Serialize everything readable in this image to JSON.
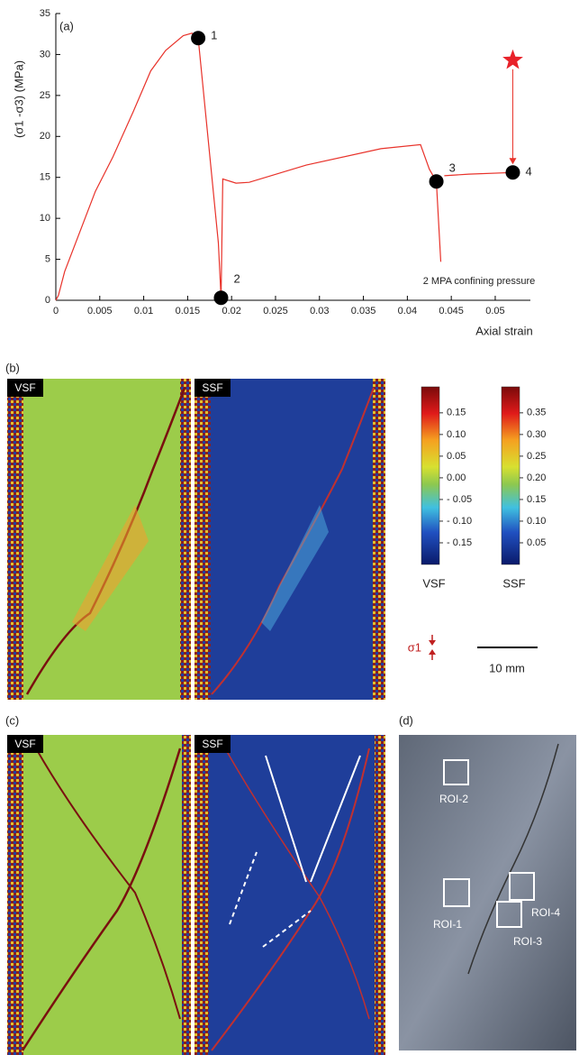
{
  "chart_data": {
    "type": "line",
    "panel_label": "(a)",
    "xlabel": "Axial strain",
    "ylabel": "(σ1 -σ3) (MPa)",
    "annotation": "2 MPA confining pressure",
    "xlim": [
      0,
      0.054
    ],
    "ylim": [
      0,
      35
    ],
    "xticks": [
      0,
      0.005,
      0.01,
      0.015,
      0.02,
      0.025,
      0.03,
      0.035,
      0.04,
      0.045,
      0.05
    ],
    "yticks": [
      0,
      5,
      10,
      15,
      20,
      25,
      30,
      35
    ],
    "series": [
      {
        "color": "#e8322a",
        "x": [
          0,
          0.0003,
          0.001,
          0.0045,
          0.0065,
          0.0088,
          0.0108,
          0.0125,
          0.0145,
          0.0155,
          0.0162,
          0.0185,
          0.0188,
          0.019,
          0.0205,
          0.022,
          0.0285,
          0.037,
          0.0415,
          0.0425,
          0.0433,
          0.0438,
          null,
          0.0442,
          0.047,
          0.052
        ],
        "values": [
          0,
          0.6,
          3.5,
          13.3,
          17.5,
          23,
          28,
          30.5,
          32.3,
          32.6,
          32,
          7,
          0.3,
          14.8,
          14.3,
          14.4,
          16.5,
          18.5,
          19,
          16,
          14.5,
          4.7,
          null,
          15.2,
          15.4,
          15.6
        ]
      }
    ],
    "markers": [
      {
        "label": "1",
        "x": 0.0162,
        "y": 32
      },
      {
        "label": "2",
        "x": 0.0188,
        "y": 0.3
      },
      {
        "label": "3",
        "x": 0.0433,
        "y": 14.5
      },
      {
        "label": "4",
        "x": 0.052,
        "y": 15.6
      }
    ],
    "star": {
      "x": 0.052,
      "y": 29.3
    }
  },
  "panel_b": {
    "label": "(b)",
    "images": [
      "VSF",
      "SSF"
    ],
    "colorbars": [
      {
        "name": "VSF",
        "clim": [
          -0.2,
          0.21
        ],
        "ticks": [
          0.15,
          {
            "value": 0.1,
            "label": "0.10"
          },
          0.05,
          {
            "value": 0,
            "label": "0.00"
          },
          {
            "value": -0.05,
            "label": "- 0.05"
          },
          {
            "value": -0.1,
            "label": "- 0.10"
          },
          {
            "value": -0.15,
            "label": "- 0.15"
          }
        ]
      },
      {
        "name": "SSF",
        "clim": [
          0,
          0.41
        ],
        "ticks": [
          0.35,
          {
            "value": 0.3,
            "label": "0.30"
          },
          0.25,
          {
            "value": 0.2,
            "label": "0.20"
          },
          0.15,
          {
            "value": 0.1,
            "label": "0.10"
          },
          0.05
        ]
      }
    ],
    "stress_label": "σ1",
    "scale_label": "10 mm"
  },
  "panel_c": {
    "label": "(c)",
    "images": [
      "VSF",
      "SSF"
    ]
  },
  "panel_d": {
    "label": "(d)",
    "rois": [
      "ROI-1",
      "ROI-2",
      "ROI-3",
      "ROI-4"
    ]
  }
}
